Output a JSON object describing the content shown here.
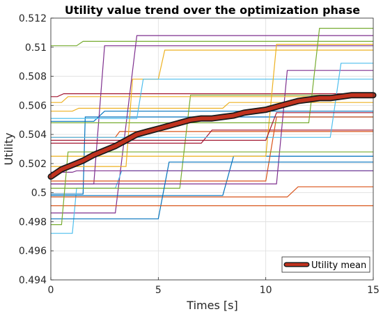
{
  "chart_data": {
    "type": "line",
    "title": "Utility value trend over the optimization phase",
    "xlabel": "Times [s]",
    "ylabel": "Utility",
    "xlim": [
      0,
      15
    ],
    "ylim": [
      0.494,
      0.512
    ],
    "x_ticks": [
      "0",
      "5",
      "10",
      "15"
    ],
    "y_ticks": [
      "0.494",
      "0.496",
      "0.498",
      "0.5",
      "0.502",
      "0.504",
      "0.506",
      "0.508",
      "0.51",
      "0.512"
    ],
    "grid": true,
    "legend": {
      "position": "bottom-right",
      "entries": [
        "Utility mean"
      ]
    },
    "series": [
      {
        "name": "Utility mean",
        "color": "#c0321e",
        "width": "thick",
        "x": [
          0,
          0.5,
          1,
          1.5,
          2,
          2.5,
          3,
          3.5,
          4,
          4.5,
          5,
          5.5,
          6,
          6.5,
          7,
          7.5,
          8,
          8.5,
          9,
          9.5,
          10,
          10.5,
          11,
          11.5,
          12,
          12.5,
          13,
          13.5,
          14,
          14.5,
          15
        ],
        "y": [
          0.5011,
          0.5016,
          0.5019,
          0.5022,
          0.5026,
          0.5029,
          0.5032,
          0.5036,
          0.504,
          0.5042,
          0.5044,
          0.5046,
          0.5048,
          0.505,
          0.5051,
          0.5051,
          0.5052,
          0.5053,
          0.5055,
          0.5056,
          0.5057,
          0.5059,
          0.5061,
          0.5063,
          0.5064,
          0.5065,
          0.5065,
          0.5066,
          0.5067,
          0.5067,
          0.5067
        ]
      }
    ],
    "individual_runs": [
      {
        "color": "#0072bd",
        "x": [
          0,
          1.5,
          1.6,
          15
        ],
        "y": [
          0.4999,
          0.4999,
          0.5052,
          0.5052
        ]
      },
      {
        "color": "#d95319",
        "x": [
          0,
          3,
          3.2,
          15
        ],
        "y": [
          0.5038,
          0.5038,
          0.5042,
          0.5042
        ]
      },
      {
        "color": "#edb120",
        "x": [
          0,
          1,
          1.3,
          8,
          8.3,
          15
        ],
        "y": [
          0.5056,
          0.5056,
          0.5058,
          0.5058,
          0.5062,
          0.5062
        ]
      },
      {
        "color": "#7e2f8e",
        "x": [
          0,
          3,
          4,
          15
        ],
        "y": [
          0.4986,
          0.4986,
          0.5108,
          0.5108
        ]
      },
      {
        "color": "#77ac30",
        "x": [
          0,
          1.2,
          1.5,
          15
        ],
        "y": [
          0.5101,
          0.5101,
          0.5104,
          0.5104
        ]
      },
      {
        "color": "#4dbeee",
        "x": [
          0,
          1,
          1.2,
          3,
          3.3,
          15
        ],
        "y": [
          0.4972,
          0.4972,
          0.5003,
          0.5003,
          0.5015,
          0.5015
        ]
      },
      {
        "color": "#a2142f",
        "x": [
          0,
          0.3,
          0.6,
          15
        ],
        "y": [
          0.5066,
          0.5066,
          0.5068,
          0.5068
        ]
      },
      {
        "color": "#0072bd",
        "x": [
          0,
          2,
          2.5,
          15
        ],
        "y": [
          0.5049,
          0.5049,
          0.5056,
          0.5056
        ]
      },
      {
        "color": "#d95319",
        "x": [
          0,
          11,
          11.5,
          15
        ],
        "y": [
          0.4997,
          0.4997,
          0.5004,
          0.5004
        ]
      },
      {
        "color": "#edb120",
        "x": [
          0,
          3.5,
          3.8,
          5,
          5.3,
          15
        ],
        "y": [
          0.5018,
          0.5018,
          0.5078,
          0.5078,
          0.5098,
          0.5098
        ]
      },
      {
        "color": "#7e2f8e",
        "x": [
          0,
          2,
          2.5,
          15
        ],
        "y": [
          0.5006,
          0.5006,
          0.5101,
          0.5101
        ]
      },
      {
        "color": "#77ac30",
        "x": [
          0,
          6,
          6.5,
          15
        ],
        "y": [
          0.5003,
          0.5003,
          0.5067,
          0.5067
        ]
      },
      {
        "color": "#4dbeee",
        "x": [
          0,
          4,
          4.3,
          15
        ],
        "y": [
          0.5051,
          0.5051,
          0.5078,
          0.5078
        ]
      },
      {
        "color": "#a2142f",
        "x": [
          0,
          7,
          7.5,
          15
        ],
        "y": [
          0.5034,
          0.5034,
          0.5043,
          0.5043
        ]
      },
      {
        "color": "#0072bd",
        "x": [
          0,
          8,
          8.5,
          15
        ],
        "y": [
          0.4998,
          0.4998,
          0.5025,
          0.5025
        ]
      },
      {
        "color": "#d95319",
        "x": [
          0,
          10,
          10.5,
          15
        ],
        "y": [
          0.5008,
          0.5008,
          0.5052,
          0.5052
        ]
      },
      {
        "color": "#edb120",
        "x": [
          0,
          10,
          10.5,
          15
        ],
        "y": [
          0.5025,
          0.5025,
          0.5102,
          0.5102
        ]
      },
      {
        "color": "#7e2f8e",
        "x": [
          0,
          10.5,
          11,
          15
        ],
        "y": [
          0.5006,
          0.5006,
          0.5084,
          0.5084
        ]
      },
      {
        "color": "#77ac30",
        "x": [
          0,
          12,
          12.5,
          15
        ],
        "y": [
          0.5048,
          0.5048,
          0.5113,
          0.5113
        ]
      },
      {
        "color": "#4dbeee",
        "x": [
          0,
          13,
          13.5,
          15
        ],
        "y": [
          0.5038,
          0.5038,
          0.5089,
          0.5089
        ]
      },
      {
        "color": "#a2142f",
        "x": [
          0,
          10,
          10.5,
          15
        ],
        "y": [
          0.5036,
          0.5036,
          0.5055,
          0.5055
        ]
      },
      {
        "color": "#0072bd",
        "x": [
          0,
          5,
          5.5,
          15
        ],
        "y": [
          0.4982,
          0.4982,
          0.5021,
          0.5021
        ]
      },
      {
        "color": "#d95319",
        "x": [
          0,
          9,
          9.5,
          15
        ],
        "y": [
          0.4991,
          0.4991,
          0.4991,
          0.4991
        ]
      },
      {
        "color": "#edb120",
        "x": [
          0,
          0.5,
          0.8,
          15
        ],
        "y": [
          0.5062,
          0.5062,
          0.5066,
          0.5066
        ]
      },
      {
        "color": "#7e2f8e",
        "x": [
          0,
          1,
          1.2,
          15
        ],
        "y": [
          0.5014,
          0.5014,
          0.5015,
          0.5015
        ]
      },
      {
        "color": "#77ac30",
        "x": [
          0,
          0.5,
          0.8,
          15
        ],
        "y": [
          0.4978,
          0.4978,
          0.5028,
          0.5028
        ]
      }
    ]
  }
}
